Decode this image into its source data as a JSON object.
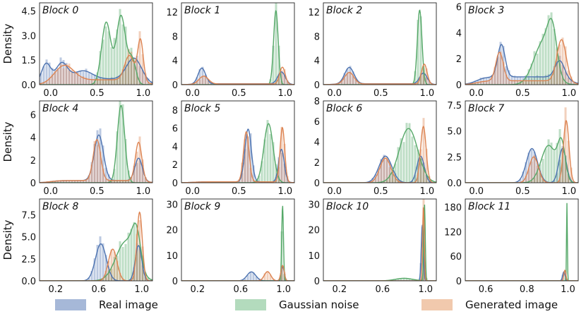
{
  "chart_data": {
    "type": "histogram-kde-grid",
    "ylabel": "Density",
    "legend": {
      "position": "bottom",
      "entries": [
        {
          "name": "Real image",
          "color": "#4c72b0"
        },
        {
          "name": "Gaussian noise",
          "color": "#55a868"
        },
        {
          "name": "Generated image",
          "color": "#dd8452"
        }
      ]
    },
    "panels": [
      {
        "title": "Block 0",
        "xlim": [
          -0.12,
          1.1
        ],
        "ylim": [
          0,
          5.0
        ],
        "xticks": [
          0.0,
          0.5,
          1.0
        ],
        "xticklabels": [
          "0.0",
          "0.5",
          "1.0"
        ],
        "yticks": [
          0,
          1.5,
          3.0,
          4.5
        ],
        "yticklabels": [
          "0.0",
          "1.5",
          "3.0",
          "4.5"
        ],
        "series": [
          {
            "name": "Real image",
            "peaks": [
              [
                -0.05,
                1.2,
                0.05
              ],
              [
                0.12,
                1.0,
                0.06
              ],
              [
                0.35,
                0.5,
                0.1
              ],
              [
                0.9,
                1.3,
                0.08
              ]
            ],
            "base": 0.35
          },
          {
            "name": "Gaussian noise",
            "peaks": [
              [
                0.6,
                3.8,
                0.05
              ],
              [
                0.76,
                4.2,
                0.05
              ],
              [
                0.88,
                1.5,
                0.04
              ]
            ],
            "base": 0.0
          },
          {
            "name": "Generated image",
            "peaks": [
              [
                0.15,
                0.9,
                0.1
              ],
              [
                0.85,
                1.5,
                0.05
              ],
              [
                0.97,
                2.5,
                0.03
              ]
            ],
            "base": 0.3
          }
        ]
      },
      {
        "title": "Block 1",
        "xlim": [
          -0.12,
          1.1
        ],
        "ylim": [
          0,
          13.5
        ],
        "xticks": [
          0.0,
          0.5,
          1.0
        ],
        "xticklabels": [
          "0.0",
          "0.5",
          "1.0"
        ],
        "yticks": [
          0,
          4,
          8,
          12
        ],
        "yticklabels": [
          "0",
          "4",
          "8",
          "12"
        ],
        "series": [
          {
            "name": "Real image",
            "peaks": [
              [
                0.1,
                2.6,
                0.04
              ],
              [
                0.96,
                2.0,
                0.04
              ]
            ],
            "base": 0.15
          },
          {
            "name": "Gaussian noise",
            "peaks": [
              [
                0.9,
                12.2,
                0.025
              ]
            ],
            "base": 0.0
          },
          {
            "name": "Generated image",
            "peaks": [
              [
                0.12,
                1.3,
                0.05
              ],
              [
                0.97,
                2.8,
                0.03
              ]
            ],
            "base": 0.12
          }
        ]
      },
      {
        "title": "Block 2",
        "xlim": [
          -0.12,
          1.1
        ],
        "ylim": [
          0,
          13.5
        ],
        "xticks": [
          0.0,
          0.5,
          1.0
        ],
        "xticklabels": [
          "0.0",
          "0.5",
          "1.0"
        ],
        "yticks": [
          0,
          4,
          8,
          12
        ],
        "yticklabels": [
          "0",
          "4",
          "8",
          "12"
        ],
        "series": [
          {
            "name": "Real image",
            "peaks": [
              [
                0.16,
                2.7,
                0.05
              ],
              [
                0.96,
                1.8,
                0.04
              ]
            ],
            "base": 0.15
          },
          {
            "name": "Gaussian noise",
            "peaks": [
              [
                0.92,
                12.3,
                0.025
              ]
            ],
            "base": 0.0
          },
          {
            "name": "Generated image",
            "peaks": [
              [
                0.16,
                1.9,
                0.05
              ],
              [
                0.97,
                3.3,
                0.03
              ]
            ],
            "base": 0.12
          }
        ]
      },
      {
        "title": "Block 3",
        "xlim": [
          -0.12,
          1.1
        ],
        "ylim": [
          0,
          6.3
        ],
        "xticks": [
          0.0,
          0.5,
          1.0
        ],
        "xticklabels": [
          "0.0",
          "0.5",
          "1.0"
        ],
        "yticks": [
          0,
          2,
          4,
          6
        ],
        "yticklabels": [
          "0",
          "2",
          "4",
          "6"
        ],
        "series": [
          {
            "name": "Real image",
            "peaks": [
              [
                0.27,
                2.5,
                0.04
              ],
              [
                0.9,
                1.3,
                0.05
              ]
            ],
            "base": 0.6
          },
          {
            "name": "Gaussian noise",
            "peaks": [
              [
                0.72,
                3.2,
                0.1
              ],
              [
                0.82,
                3.0,
                0.05
              ]
            ],
            "base": 0.0
          },
          {
            "name": "Generated image",
            "peaks": [
              [
                0.25,
                2.2,
                0.04
              ],
              [
                0.92,
                3.2,
                0.05
              ]
            ],
            "base": 0.3
          }
        ]
      },
      {
        "title": "Block 4",
        "xlim": [
          -0.12,
          1.1
        ],
        "ylim": [
          0,
          7.2
        ],
        "xticks": [
          0.0,
          0.5,
          1.0
        ],
        "xticklabels": [
          "0.0",
          "0.5",
          "1.0"
        ],
        "yticks": [
          0,
          2,
          4,
          6
        ],
        "yticklabels": [
          "0",
          "2",
          "4",
          "6"
        ],
        "series": [
          {
            "name": "Real image",
            "peaks": [
              [
                0.52,
                4.0,
                0.05
              ],
              [
                0.95,
                2.0,
                0.04
              ]
            ],
            "base": 0.2
          },
          {
            "name": "Gaussian noise",
            "peaks": [
              [
                0.76,
                6.8,
                0.04
              ]
            ],
            "base": 0.0
          },
          {
            "name": "Generated image",
            "peaks": [
              [
                0.5,
                3.6,
                0.04
              ],
              [
                0.95,
                3.4,
                0.035
              ]
            ],
            "base": 0.2
          }
        ]
      },
      {
        "title": "Block 5",
        "xlim": [
          -0.12,
          1.1
        ],
        "ylim": [
          0,
          9.0
        ],
        "xticks": [
          0.0,
          0.5,
          1.0
        ],
        "xticklabels": [
          "0.0",
          "0.5",
          "1.0"
        ],
        "yticks": [
          0,
          2,
          4,
          6,
          8
        ],
        "yticklabels": [
          "0",
          "2",
          "4",
          "6",
          "8"
        ],
        "series": [
          {
            "name": "Real image",
            "peaks": [
              [
                0.6,
                5.8,
                0.035
              ],
              [
                0.96,
                3.6,
                0.03
              ]
            ],
            "base": 0.1
          },
          {
            "name": "Gaussian noise",
            "peaks": [
              [
                0.82,
                6.5,
                0.05
              ]
            ],
            "base": 0.0
          },
          {
            "name": "Generated image",
            "peaks": [
              [
                0.58,
                5.5,
                0.03
              ],
              [
                0.97,
                6.0,
                0.025
              ]
            ],
            "base": 0.1
          }
        ]
      },
      {
        "title": "Block 6",
        "xlim": [
          -0.12,
          1.1
        ],
        "ylim": [
          0,
          8.0
        ],
        "xticks": [
          0.0,
          0.5,
          1.0
        ],
        "xticklabels": [
          "0.0",
          "0.5",
          "1.0"
        ],
        "yticks": [
          0,
          2,
          4,
          6,
          8
        ],
        "yticklabels": [
          "0",
          "2",
          "4",
          "6",
          "8"
        ],
        "series": [
          {
            "name": "Real image",
            "peaks": [
              [
                0.55,
                2.6,
                0.07
              ],
              [
                0.93,
                2.6,
                0.04
              ]
            ],
            "base": 0.0
          },
          {
            "name": "Gaussian noise",
            "peaks": [
              [
                0.8,
                5.3,
                0.1
              ]
            ],
            "base": 0.0
          },
          {
            "name": "Generated image",
            "peaks": [
              [
                0.55,
                2.4,
                0.06
              ],
              [
                0.96,
                5.5,
                0.03
              ]
            ],
            "base": 0.0
          }
        ]
      },
      {
        "title": "Block 7",
        "xlim": [
          -0.12,
          1.1
        ],
        "ylim": [
          0,
          7.9
        ],
        "xticks": [
          0.0,
          0.5,
          1.0
        ],
        "xticklabels": [
          "0.0",
          "0.5",
          "1.0"
        ],
        "yticks": [
          0,
          2.5,
          5.0,
          7.5
        ],
        "yticklabels": [
          "0.0",
          "2.5",
          "5.0",
          "7.5"
        ],
        "series": [
          {
            "name": "Real image",
            "peaks": [
              [
                0.6,
                3.3,
                0.06
              ],
              [
                0.93,
                3.3,
                0.04
              ]
            ],
            "base": 0.0
          },
          {
            "name": "Gaussian noise",
            "peaks": [
              [
                0.78,
                3.6,
                0.08
              ],
              [
                0.92,
                3.5,
                0.04
              ]
            ],
            "base": 0.0
          },
          {
            "name": "Generated image",
            "peaks": [
              [
                0.62,
                2.5,
                0.05
              ],
              [
                0.97,
                6.0,
                0.03
              ]
            ],
            "base": 0.0
          }
        ]
      },
      {
        "title": "Block 8",
        "xlim": [
          0.05,
          1.1
        ],
        "ylim": [
          0,
          9.3
        ],
        "xticks": [
          0.2,
          0.6,
          1.0
        ],
        "xticklabels": [
          "0.2",
          "0.6",
          "1.0"
        ],
        "yticks": [
          0,
          2.5,
          5.0,
          7.5
        ],
        "yticklabels": [
          "0.0",
          "2.5",
          "5.0",
          "7.5"
        ],
        "series": [
          {
            "name": "Real image",
            "peaks": [
              [
                0.62,
                4.2,
                0.05
              ],
              [
                0.97,
                4.0,
                0.03
              ]
            ],
            "base": 0.0
          },
          {
            "name": "Gaussian noise",
            "peaks": [
              [
                0.85,
                4.4,
                0.09
              ],
              [
                0.95,
                4.0,
                0.04
              ]
            ],
            "base": 0.0
          },
          {
            "name": "Generated image",
            "peaks": [
              [
                0.73,
                3.6,
                0.04
              ],
              [
                0.98,
                7.8,
                0.025
              ]
            ],
            "base": 0.0
          }
        ]
      },
      {
        "title": "Block 9",
        "xlim": [
          0.05,
          1.1
        ],
        "ylim": [
          0,
          32
        ],
        "xticks": [
          0.2,
          0.6,
          1.0
        ],
        "xticklabels": [
          "0.2",
          "0.6",
          "1.0"
        ],
        "yticks": [
          0,
          10,
          20,
          30
        ],
        "yticklabels": [
          "0",
          "10",
          "20",
          "30"
        ],
        "series": [
          {
            "name": "Real image",
            "peaks": [
              [
                0.7,
                3.5,
                0.04
              ],
              [
                0.99,
                5.5,
                0.015
              ]
            ],
            "base": 0.0
          },
          {
            "name": "Gaussian noise",
            "peaks": [
              [
                0.99,
                29.5,
                0.008
              ]
            ],
            "base": 0.0
          },
          {
            "name": "Generated image",
            "peaks": [
              [
                0.85,
                3.6,
                0.03
              ],
              [
                0.99,
                6.0,
                0.015
              ]
            ],
            "base": 0.0
          }
        ]
      },
      {
        "title": "Block 10",
        "xlim": [
          0.05,
          1.1
        ],
        "ylim": [
          0,
          32
        ],
        "xticks": [
          0.2,
          0.6,
          1.0
        ],
        "xticklabels": [
          "0.2",
          "0.6",
          "1.0"
        ],
        "yticks": [
          0,
          10,
          20,
          30
        ],
        "yticklabels": [
          "0",
          "10",
          "20",
          "30"
        ],
        "series": [
          {
            "name": "Real image",
            "peaks": [
              [
                0.97,
                22.0,
                0.01
              ]
            ],
            "base": 0.0
          },
          {
            "name": "Gaussian noise",
            "peaks": [
              [
                0.99,
                30.0,
                0.007
              ],
              [
                0.8,
                1.0,
                0.08
              ]
            ],
            "base": 0.0
          },
          {
            "name": "Generated image",
            "peaks": [
              [
                0.98,
                29.0,
                0.008
              ]
            ],
            "base": 0.0
          }
        ]
      },
      {
        "title": "Block 11",
        "xlim": [
          0.5,
          1.05
        ],
        "ylim": [
          0,
          200
        ],
        "xticks": [
          0.6,
          0.8,
          1.0
        ],
        "xticklabels": [
          "0.6",
          "0.8",
          "1.0"
        ],
        "yticks": [
          0,
          60,
          120,
          180
        ],
        "yticklabels": [
          "0",
          "60",
          "120",
          "180"
        ],
        "series": [
          {
            "name": "Real image",
            "peaks": [
              [
                0.98,
                22.0,
                0.006
              ]
            ],
            "base": 0.0
          },
          {
            "name": "Gaussian noise",
            "peaks": [
              [
                0.995,
                190.0,
                0.002
              ]
            ],
            "base": 0.0
          },
          {
            "name": "Generated image",
            "peaks": [
              [
                0.985,
                26.0,
                0.005
              ]
            ],
            "base": 0.0
          }
        ]
      }
    ]
  }
}
